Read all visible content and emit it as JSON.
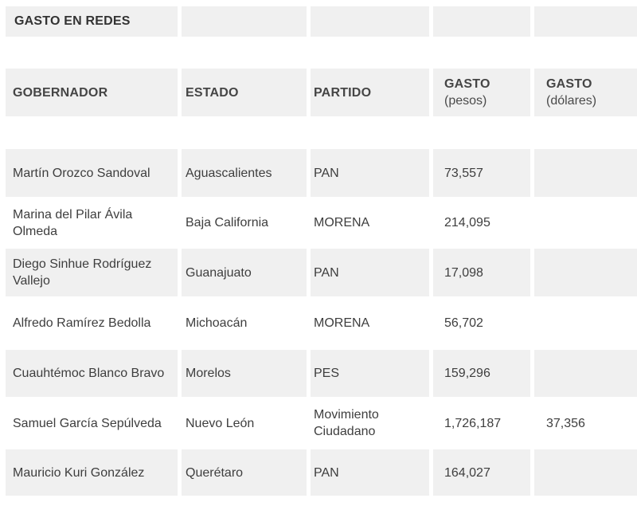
{
  "colors": {
    "cell_background": "#f0f0f0",
    "page_background": "#ffffff",
    "title_text": "#333333",
    "header_text": "#454545",
    "body_text": "#3e3e3e"
  },
  "table": {
    "title": "GASTO EN REDES",
    "columns": [
      {
        "label": "GOBERNADOR",
        "sub": ""
      },
      {
        "label": "ESTADO",
        "sub": ""
      },
      {
        "label": "PARTIDO",
        "sub": ""
      },
      {
        "label": "GASTO",
        "sub": "(pesos)"
      },
      {
        "label": "GASTO",
        "sub": "(dólares)"
      }
    ],
    "rows": [
      {
        "gobernador": "Martín Orozco Sandoval",
        "estado": "Aguascalientes",
        "partido": "PAN",
        "gasto_pesos": "73,557",
        "gasto_dolares": ""
      },
      {
        "gobernador": "Marina del Pilar Ávila Olmeda",
        "estado": "Baja California",
        "partido": "MORENA",
        "gasto_pesos": "214,095",
        "gasto_dolares": ""
      },
      {
        "gobernador": "Diego Sinhue Rodríguez Vallejo",
        "estado": "Guanajuato",
        "partido": "PAN",
        "gasto_pesos": "17,098",
        "gasto_dolares": ""
      },
      {
        "gobernador": "Alfredo Ramírez Bedolla",
        "estado": "Michoacán",
        "partido": "MORENA",
        "gasto_pesos": "56,702",
        "gasto_dolares": ""
      },
      {
        "gobernador": "Cuauhtémoc Blanco Bravo",
        "estado": "Morelos",
        "partido": "PES",
        "gasto_pesos": "159,296",
        "gasto_dolares": ""
      },
      {
        "gobernador": "Samuel García Sepúlveda",
        "estado": "Nuevo León",
        "partido": "Movimiento Ciudadano",
        "gasto_pesos": "1,726,187",
        "gasto_dolares": "37,356"
      },
      {
        "gobernador": "Mauricio Kuri González",
        "estado": "Querétaro",
        "partido": "PAN",
        "gasto_pesos": "164,027",
        "gasto_dolares": ""
      }
    ]
  }
}
